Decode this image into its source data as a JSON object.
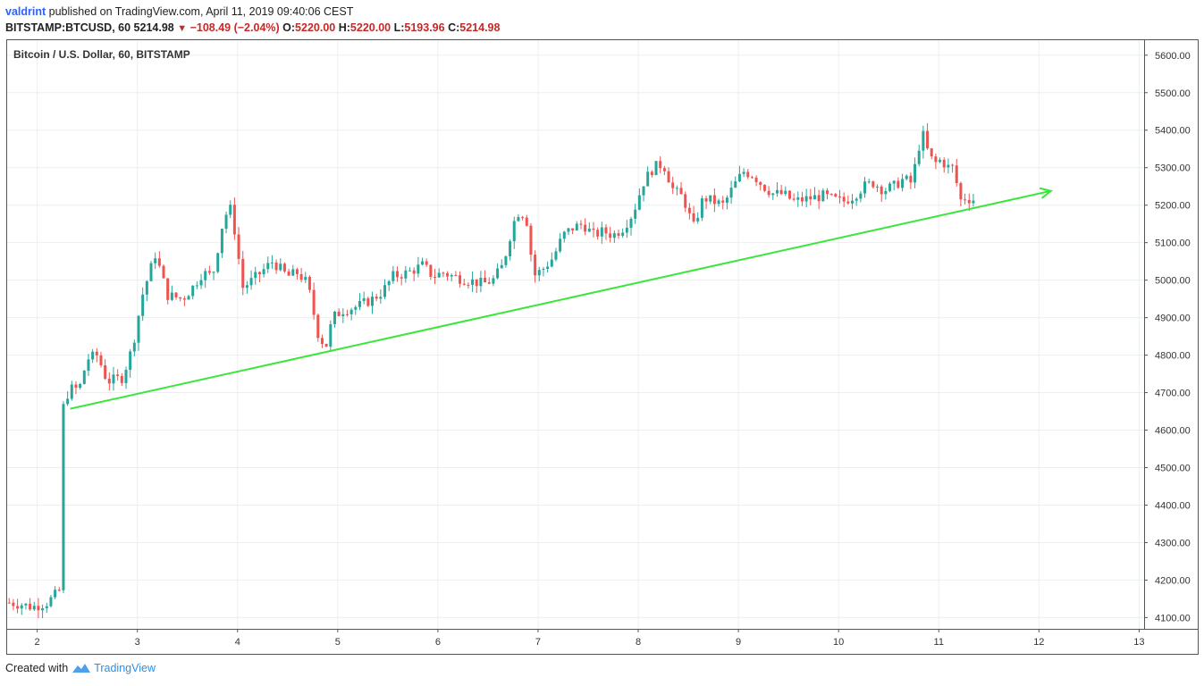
{
  "header": {
    "author": "valdrint",
    "published_text": "published on TradingView.com, April 11, 2019 09:40:06 CEST",
    "symbol": "BITSTAMP:BTCUSD, 60",
    "last": "5214.98",
    "change": "−108.49 (−2.04%)",
    "o_label": "O:",
    "o_value": "5220.00",
    "h_label": "H:",
    "h_value": "5220.00",
    "l_label": "L:",
    "l_value": "5193.96",
    "c_label": "C:",
    "c_value": "5214.98"
  },
  "footer": {
    "created_with": "Created with",
    "brand": "TradingView"
  },
  "colors": {
    "up": "#26a69a",
    "down": "#ef5350",
    "trendline": "#3ae63a",
    "grid": "#e8f0f3",
    "border": "#555555"
  },
  "chart_data": {
    "type": "candlestick",
    "title": "Bitcoin / U.S. Dollar, 60, BITSTAMP",
    "x_ticks": [
      "2",
      "3",
      "4",
      "5",
      "6",
      "7",
      "8",
      "9",
      "10",
      "11",
      "12",
      "13"
    ],
    "y_ticks": [
      "5600.00",
      "5500.00",
      "5400.00",
      "5300.00",
      "5200.00",
      "5100.00",
      "5000.00",
      "4900.00",
      "4800.00",
      "4700.00",
      "4600.00",
      "4500.00",
      "4400.00",
      "4300.00",
      "4200.00",
      "4100.00"
    ],
    "xlim": [
      1.7,
      13.05
    ],
    "ylim": [
      4070,
      5640
    ],
    "grid": true,
    "trendline": {
      "from": {
        "x": 2.33,
        "y": 4657
      },
      "to": {
        "x": 12.12,
        "y": 5238
      },
      "arrow": true
    },
    "price_path": [
      [
        1.72,
        4140
      ],
      [
        1.85,
        4135
      ],
      [
        1.95,
        4128
      ],
      [
        2.1,
        4140
      ],
      [
        2.2,
        4165
      ],
      [
        2.24,
        4178
      ],
      [
        2.26,
        4660
      ],
      [
        2.32,
        4710
      ],
      [
        2.42,
        4710
      ],
      [
        2.5,
        4790
      ],
      [
        2.6,
        4800
      ],
      [
        2.7,
        4730
      ],
      [
        2.85,
        4740
      ],
      [
        2.95,
        4820
      ],
      [
        3.05,
        4960
      ],
      [
        3.18,
        5070
      ],
      [
        3.3,
        4960
      ],
      [
        3.45,
        4950
      ],
      [
        3.55,
        4980
      ],
      [
        3.65,
        5020
      ],
      [
        3.75,
        5010
      ],
      [
        3.85,
        5150
      ],
      [
        3.92,
        5200
      ],
      [
        3.98,
        5120
      ],
      [
        4.05,
        4980
      ],
      [
        4.15,
        5000
      ],
      [
        4.35,
        5050
      ],
      [
        4.5,
        5010
      ],
      [
        4.6,
        5020
      ],
      [
        4.7,
        4990
      ],
      [
        4.8,
        4860
      ],
      [
        4.88,
        4820
      ],
      [
        4.95,
        4900
      ],
      [
        5.05,
        4920
      ],
      [
        5.2,
        4930
      ],
      [
        5.35,
        4950
      ],
      [
        5.45,
        4970
      ],
      [
        5.55,
        5010
      ],
      [
        5.7,
        5020
      ],
      [
        5.85,
        5040
      ],
      [
        5.95,
        5010
      ],
      [
        6.05,
        5020
      ],
      [
        6.15,
        5010
      ],
      [
        6.3,
        5000
      ],
      [
        6.45,
        4990
      ],
      [
        6.55,
        5000
      ],
      [
        6.65,
        5040
      ],
      [
        6.75,
        5150
      ],
      [
        6.82,
        5190
      ],
      [
        6.9,
        5150
      ],
      [
        6.95,
        5010
      ],
      [
        7.05,
        5030
      ],
      [
        7.15,
        5060
      ],
      [
        7.25,
        5120
      ],
      [
        7.35,
        5140
      ],
      [
        7.45,
        5150
      ],
      [
        7.55,
        5120
      ],
      [
        7.65,
        5130
      ],
      [
        7.75,
        5120
      ],
      [
        7.85,
        5140
      ],
      [
        7.95,
        5180
      ],
      [
        8.05,
        5260
      ],
      [
        8.15,
        5300
      ],
      [
        8.25,
        5310
      ],
      [
        8.35,
        5240
      ],
      [
        8.45,
        5220
      ],
      [
        8.55,
        5140
      ],
      [
        8.65,
        5220
      ],
      [
        8.75,
        5210
      ],
      [
        8.85,
        5200
      ],
      [
        8.95,
        5250
      ],
      [
        9.05,
        5290
      ],
      [
        9.15,
        5280
      ],
      [
        9.25,
        5250
      ],
      [
        9.35,
        5230
      ],
      [
        9.45,
        5230
      ],
      [
        9.55,
        5210
      ],
      [
        9.65,
        5215
      ],
      [
        9.75,
        5220
      ],
      [
        9.85,
        5225
      ],
      [
        9.95,
        5215
      ],
      [
        10.05,
        5210
      ],
      [
        10.15,
        5225
      ],
      [
        10.25,
        5250
      ],
      [
        10.35,
        5260
      ],
      [
        10.45,
        5240
      ],
      [
        10.55,
        5250
      ],
      [
        10.65,
        5270
      ],
      [
        10.72,
        5260
      ],
      [
        10.78,
        5320
      ],
      [
        10.83,
        5400
      ],
      [
        10.88,
        5350
      ],
      [
        10.95,
        5310
      ],
      [
        11.02,
        5320
      ],
      [
        11.1,
        5300
      ],
      [
        11.16,
        5300
      ],
      [
        11.2,
        5210
      ],
      [
        11.26,
        5220
      ],
      [
        11.34,
        5215
      ],
      [
        11.38,
        5215
      ]
    ]
  }
}
